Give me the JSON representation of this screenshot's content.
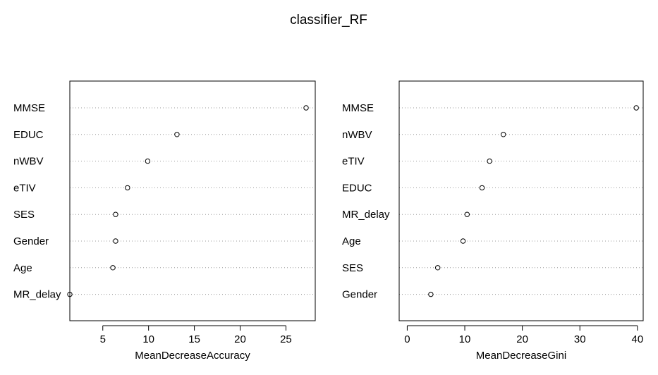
{
  "title": "classifier_RF",
  "chart_data": [
    {
      "type": "scatter",
      "subtype": "dotchart",
      "xlabel": "MeanDecreaseAccuracy",
      "xlim": [
        1.4,
        28.2
      ],
      "xticks": [
        5,
        10,
        15,
        20,
        25
      ],
      "grid": "dotted horizontal lines",
      "categories": [
        "MMSE",
        "EDUC",
        "nWBV",
        "eTIV",
        "SES",
        "Gender",
        "Age",
        "MR_delay"
      ],
      "values": [
        27.2,
        13.1,
        9.9,
        7.7,
        6.4,
        6.4,
        6.1,
        1.4
      ]
    },
    {
      "type": "scatter",
      "subtype": "dotchart",
      "xlabel": "MeanDecreaseGini",
      "xlim": [
        -1.4,
        41.0
      ],
      "xticks": [
        0,
        10,
        20,
        30,
        40
      ],
      "grid": "dotted horizontal lines",
      "categories": [
        "MMSE",
        "nWBV",
        "eTIV",
        "EDUC",
        "MR_delay",
        "Age",
        "SES",
        "Gender"
      ],
      "values": [
        39.8,
        16.7,
        14.3,
        13.0,
        10.4,
        9.7,
        5.3,
        4.1
      ]
    }
  ]
}
